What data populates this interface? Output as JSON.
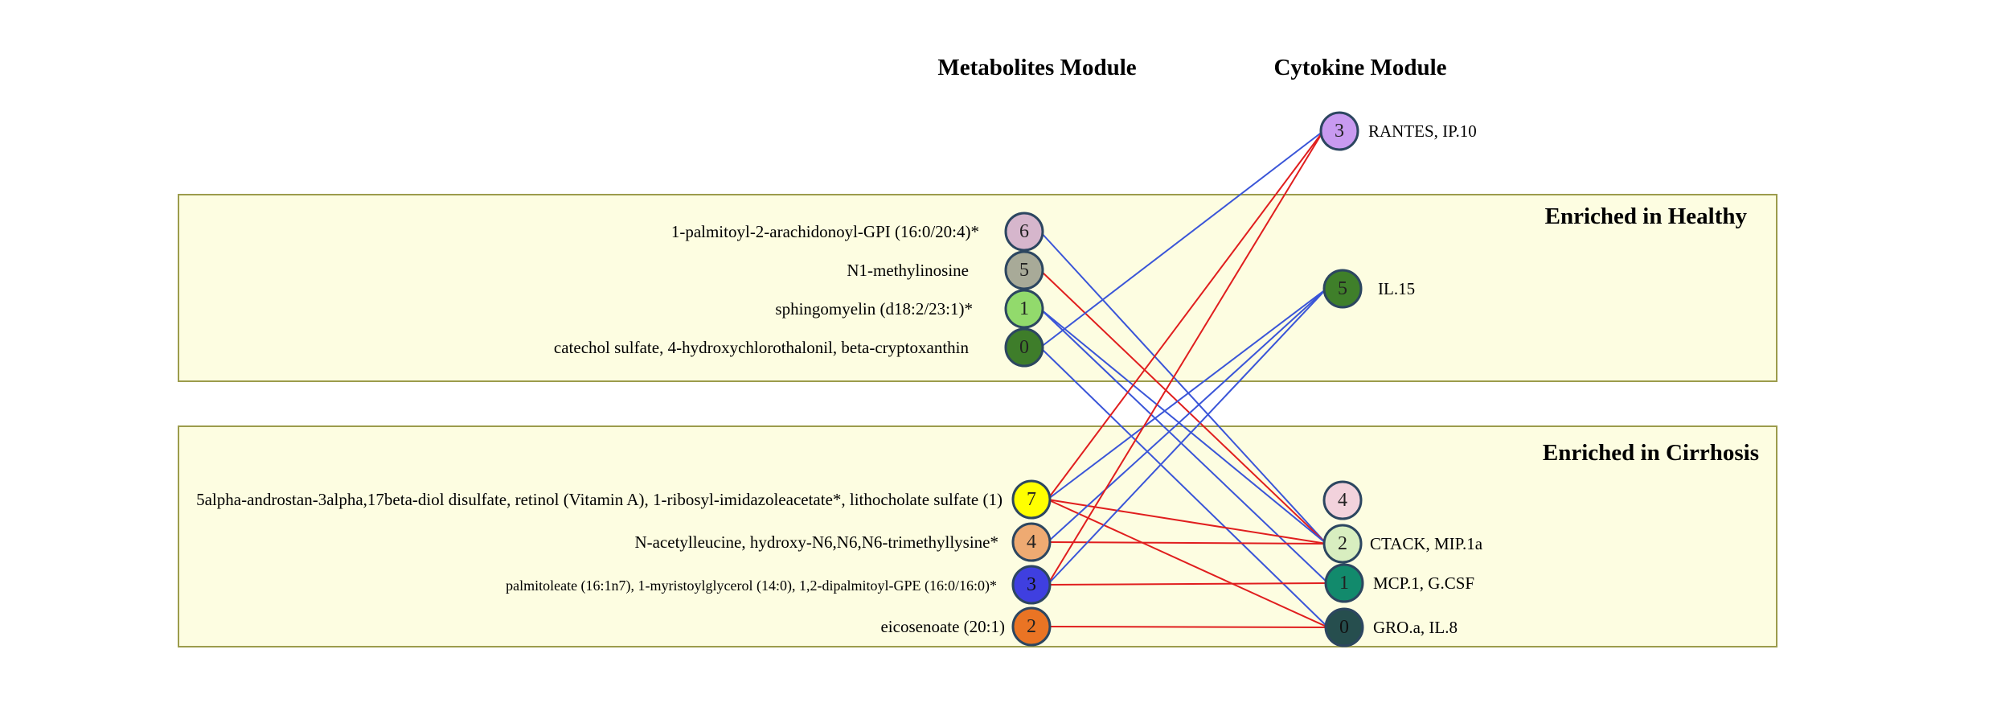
{
  "columns": {
    "left": "Metabolites Module",
    "right": "Cytokine Module"
  },
  "groups": {
    "healthy": "Enriched in Healthy",
    "cirrhosis": "Enriched in Cirrhosis"
  },
  "metabolites": [
    {
      "id": "m6",
      "num": "6",
      "label": "1-palmitoyl-2-arachidonoyl-GPI (16:0/20:4)*",
      "color": "#d6b6cc",
      "group": "healthy"
    },
    {
      "id": "m5",
      "num": "5",
      "label": "N1-methylinosine",
      "color": "#a8aa98",
      "group": "healthy"
    },
    {
      "id": "m1",
      "num": "1",
      "label": "sphingomyelin (d18:2/23:1)*",
      "color": "#92da6c",
      "group": "healthy"
    },
    {
      "id": "m0",
      "num": "0",
      "label": "catechol sulfate, 4-hydroxychlorothalonil, beta-cryptoxanthin",
      "color": "#3e7d2a",
      "group": "healthy"
    },
    {
      "id": "m7",
      "num": "7",
      "label": "5alpha-androstan-3alpha,17beta-diol disulfate, retinol (Vitamin A), 1-ribosyl-imidazoleacetate*, lithocholate sulfate (1)",
      "color": "#ffff00",
      "group": "cirrhosis"
    },
    {
      "id": "m4",
      "num": "4",
      "label": "N-acetylleucine, hydroxy-N6,N6,N6-trimethyllysine*",
      "color": "#eeaa72",
      "group": "cirrhosis"
    },
    {
      "id": "m3",
      "num": "3",
      "label": "palmitoleate (16:1n7), 1-myristoylglycerol (14:0), 1,2-dipalmitoyl-GPE (16:0/16:0)*",
      "color": "#3f3fe0",
      "group": "cirrhosis"
    },
    {
      "id": "m2",
      "num": "2",
      "label": "eicosenoate (20:1)",
      "color": "#ea7424",
      "group": "cirrhosis"
    }
  ],
  "cytokines": [
    {
      "id": "c3",
      "num": "3",
      "label": "RANTES, IP.10",
      "color": "#c89af0"
    },
    {
      "id": "c5",
      "num": "5",
      "label": "IL.15",
      "color": "#3f7f2a"
    },
    {
      "id": "c4",
      "num": "4",
      "label": "",
      "color": "#f2d2dc"
    },
    {
      "id": "c2",
      "num": "2",
      "label": "CTACK, MIP.1a",
      "color": "#d8eec0"
    },
    {
      "id": "c1",
      "num": "1",
      "label": "MCP.1, G.CSF",
      "color": "#128a6c"
    },
    {
      "id": "c0",
      "num": "0",
      "label": "GRO.a, IL.8",
      "color": "#264e4e"
    }
  ],
  "edges": [
    {
      "from": "m6",
      "to": "c2",
      "color": "#3a55d8"
    },
    {
      "from": "m5",
      "to": "c2",
      "color": "#e01e1e"
    },
    {
      "from": "m1",
      "to": "c2",
      "color": "#3a55d8"
    },
    {
      "from": "m1",
      "to": "c1",
      "color": "#3a55d8"
    },
    {
      "from": "m0",
      "to": "c3",
      "color": "#3a55d8"
    },
    {
      "from": "m0",
      "to": "c0",
      "color": "#3a55d8"
    },
    {
      "from": "m7",
      "to": "c3",
      "color": "#e01e1e"
    },
    {
      "from": "m7",
      "to": "c5",
      "color": "#3a55d8"
    },
    {
      "from": "m7",
      "to": "c2",
      "color": "#e01e1e"
    },
    {
      "from": "m7",
      "to": "c0",
      "color": "#e01e1e"
    },
    {
      "from": "m4",
      "to": "c5",
      "color": "#3a55d8"
    },
    {
      "from": "m4",
      "to": "c2",
      "color": "#e01e1e"
    },
    {
      "from": "m3",
      "to": "c3",
      "color": "#e01e1e"
    },
    {
      "from": "m3",
      "to": "c5",
      "color": "#3a55d8"
    },
    {
      "from": "m3",
      "to": "c1",
      "color": "#e01e1e"
    },
    {
      "from": "m2",
      "to": "c0",
      "color": "#e01e1e"
    }
  ]
}
